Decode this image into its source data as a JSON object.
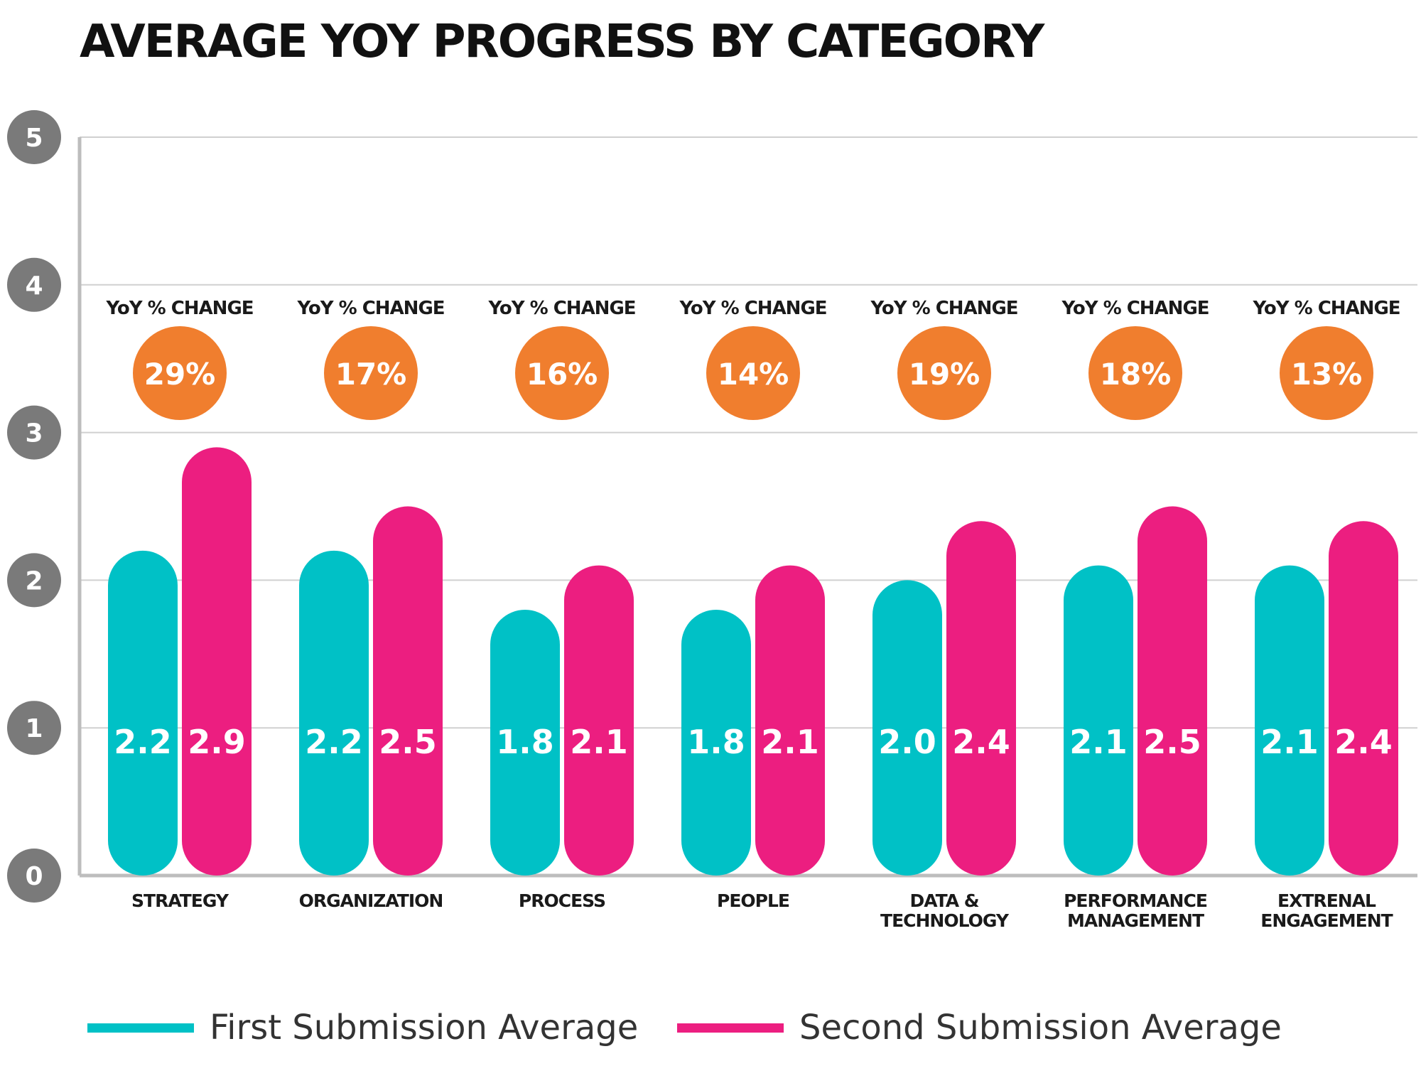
{
  "colors": {
    "first": "#00C1C6",
    "second": "#EC1E80",
    "badge": "#F07E2E",
    "axis_circle": "#7A7A7A",
    "grid": "#D0D0D0",
    "axis": "#BDBDBD"
  },
  "chart_data": {
    "type": "bar",
    "title": "AVERAGE YOY PROGRESS BY CATEGORY",
    "ylim": [
      0,
      5
    ],
    "yticks": [
      "0",
      "1",
      "2",
      "3",
      "4",
      "5"
    ],
    "grid": true,
    "legend_position": "bottom",
    "categories": [
      [
        "STRATEGY"
      ],
      [
        "ORGANIZATION"
      ],
      [
        "PROCESS"
      ],
      [
        "PEOPLE"
      ],
      [
        "DATA &",
        "TECHNOLOGY"
      ],
      [
        "PERFORMANCE",
        "MANAGEMENT"
      ],
      [
        "EXTRENAL",
        "ENGAGEMENT"
      ]
    ],
    "series": [
      {
        "name": "First Submission Average",
        "values": [
          2.2,
          2.2,
          1.8,
          1.8,
          2.0,
          2.1,
          2.1
        ],
        "labels": [
          "2.2",
          "2.2",
          "1.8",
          "1.8",
          "2.0",
          "2.1",
          "2.1"
        ]
      },
      {
        "name": "Second Submission Average",
        "values": [
          2.9,
          2.5,
          2.1,
          2.1,
          2.4,
          2.5,
          2.4
        ],
        "labels": [
          "2.9",
          "2.5",
          "2.1",
          "2.1",
          "2.4",
          "2.5",
          "2.4"
        ]
      }
    ],
    "yoy_label": "YoY % CHANGE",
    "yoy_change": [
      "29%",
      "17%",
      "16%",
      "14%",
      "19%",
      "18%",
      "13%"
    ]
  }
}
